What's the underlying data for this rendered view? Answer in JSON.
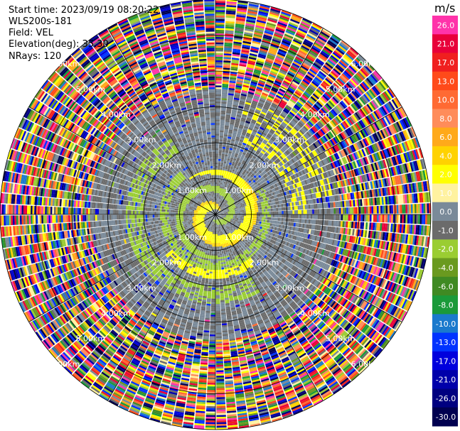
{
  "header": {
    "start_time": "Start time: 2023/09/19 08:20:22",
    "instrument": "WLS200s-181",
    "field": "Field: VEL",
    "elevation": "Elevation(deg): 35.30",
    "nrays": "NRays: 120"
  },
  "colorbar": {
    "unit": "m/s",
    "levels": [
      {
        "label": "26.0",
        "color": "#ff33aa"
      },
      {
        "label": "21.0",
        "color": "#e8003a"
      },
      {
        "label": "17.0",
        "color": "#f01f1f"
      },
      {
        "label": "13.0",
        "color": "#ff4a1a"
      },
      {
        "label": "10.0",
        "color": "#ff6a33"
      },
      {
        "label": "8.0",
        "color": "#ff8c5a"
      },
      {
        "label": "6.0",
        "color": "#ffa91a"
      },
      {
        "label": "4.0",
        "color": "#ffd200"
      },
      {
        "label": "2.0",
        "color": "#ffff00"
      },
      {
        "label": "1.0",
        "color": "#fff2a0"
      },
      {
        "label": "0.0",
        "color": "#7a8a99"
      },
      {
        "label": "-1.0",
        "color": "#6b6b6b"
      },
      {
        "label": "-2.0",
        "color": "#9acd32"
      },
      {
        "label": "-4.0",
        "color": "#6a9a1f"
      },
      {
        "label": "-6.0",
        "color": "#3f8a23"
      },
      {
        "label": "-8.0",
        "color": "#1a9a3a"
      },
      {
        "label": "-10.0",
        "color": "#1a7acd"
      },
      {
        "label": "-13.0",
        "color": "#0033ff"
      },
      {
        "label": "-17.0",
        "color": "#0000dd"
      },
      {
        "label": "-21.0",
        "color": "#0000aa"
      },
      {
        "label": "-26.0",
        "color": "#000080"
      },
      {
        "label": "-30.0",
        "color": "#000050"
      }
    ]
  },
  "chart_data": {
    "type": "heatmap",
    "projection": "polar",
    "field": "VEL",
    "unit": "m/s",
    "nrays": 120,
    "range_rings_km": [
      1.0,
      2.0,
      3.0,
      4.0,
      5.0,
      6.0
    ],
    "ring_labels": [
      "1.00km",
      "2.00km",
      "3.00km",
      "4.00km",
      "5.00km",
      "6.00km"
    ],
    "max_range_km": 6.0,
    "spoke_step_deg": 30,
    "vmin": -30.0,
    "vmax": 30.0,
    "zones": [
      {
        "from_km": 0.0,
        "to_km": 1.2,
        "description": "spiral band of +2 (yellow) and -2 (green) around center",
        "dominant_values": [
          2.0,
          -2.0,
          0.0,
          -1.0
        ]
      },
      {
        "from_km": 1.2,
        "to_km": 2.6,
        "description": "mostly 0.0 / -1.0 gray with -2 arcs and +2 arcs",
        "dominant_values": [
          0.0,
          -1.0,
          -2.0,
          2.0
        ]
      },
      {
        "from_km": 2.6,
        "to_km": 3.5,
        "description": "gray with scattered values",
        "dominant_values": [
          0.0,
          -1.0,
          2.0,
          -13.0
        ]
      },
      {
        "from_km": 3.5,
        "to_km": 6.0,
        "description": "noise: random values across full range",
        "dominant_values": [
          26.0,
          -30.0,
          2.0,
          -17.0,
          13.0
        ]
      }
    ]
  }
}
